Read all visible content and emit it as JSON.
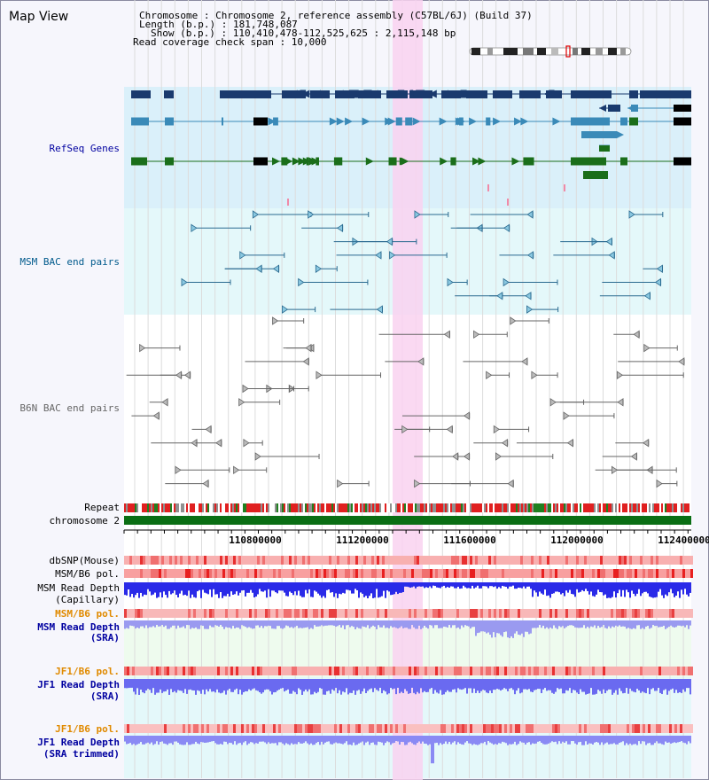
{
  "view": {
    "title": "Map View"
  },
  "info": {
    "chromosome": "Chromosome   : Chromosome 2, reference assembly (C57BL/6J) (Build 37)",
    "length": "Length (b.p.) : 181,748,087",
    "show": "Show (b.p.) : 110,410,478-112,525,625 : 2,115,148 bp",
    "coverage": "Read coverage check span : 10,000"
  },
  "tracks": {
    "refseq": "RefSeq Genes",
    "msm_bac": "MSM BAC end pairs",
    "b6n_bac": "B6N BAC end pairs",
    "repeat": "Repeat",
    "chromosome": "chromosome 2",
    "dbsnp": "dbSNP(Mouse)",
    "msm_b6_pol_1": "MSM/B6 pol.",
    "msm_depth_cap_1": "MSM Read Depth",
    "msm_depth_cap_2": "(Capillary)",
    "msm_b6_pol_2": "MSM/B6 pol.",
    "msm_depth_sra_1": "MSM Read Depth",
    "msm_depth_sra_2": "(SRA)",
    "jf1_b6_pol_1": "JF1/B6 pol.",
    "jf1_depth_sra_1": "JF1 Read Depth",
    "jf1_depth_sra_2": "(SRA)",
    "jf1_b6_pol_2": "JF1/B6 pol.",
    "jf1_depth_trim_1": "JF1 Read Depth",
    "jf1_depth_trim_2": "(SRA trimmed)"
  },
  "axis": {
    "ticks": [
      "110800000",
      "111200000",
      "111600000",
      "112000000",
      "112400000"
    ]
  },
  "colors": {
    "refseq_bg": "#daf0fa",
    "bac_bg": "#e4f8fa",
    "highlight": "#f9d2f0",
    "navy": "#1a3a6e",
    "teal": "#3a8ab8",
    "green": "#1a6e1a",
    "bac_teal": "#2a6a90",
    "b6n_grey": "#666666",
    "label_navy": "#0000a0",
    "label_teal": "#005a8c",
    "label_orange": "#e08a00",
    "depth_blue": "#3a3af0",
    "depth_light": "#8080f0"
  }
}
